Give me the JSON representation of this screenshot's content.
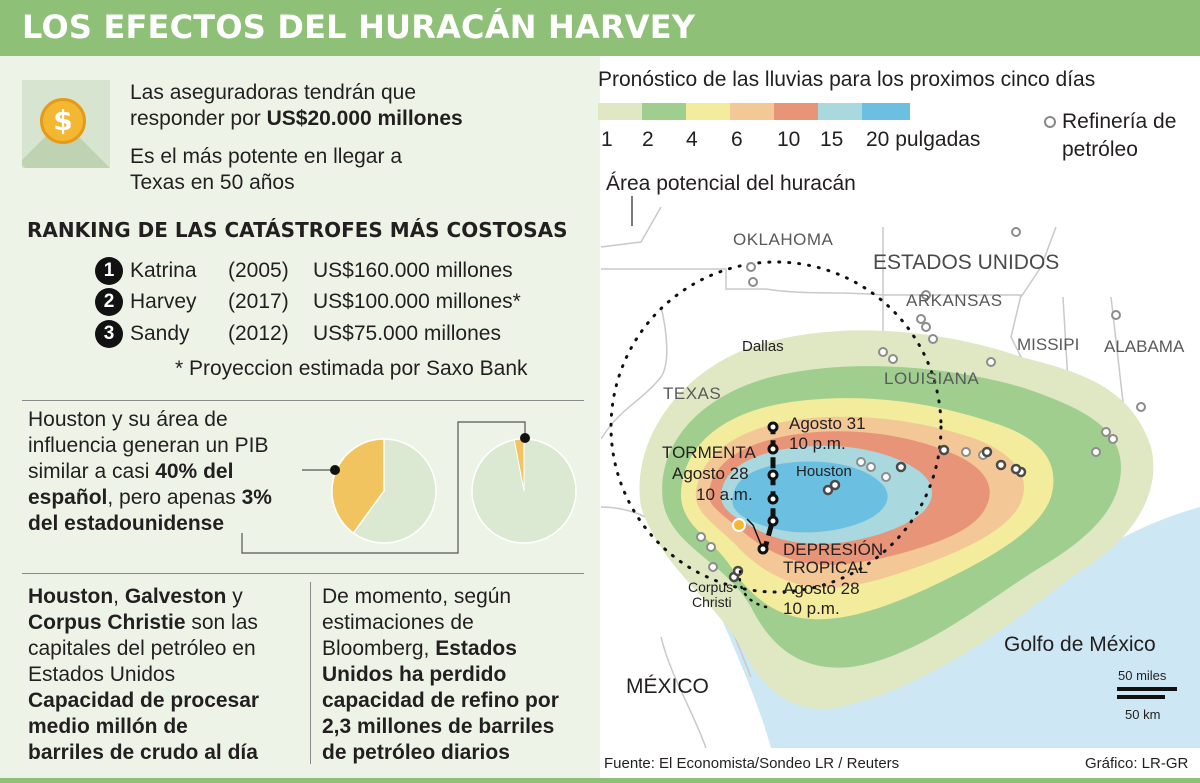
{
  "header": {
    "title": "LOS EFECTOS DEL HURACÁN HARVEY"
  },
  "intro": {
    "line1": "Las aseguradoras tendrán que",
    "line2_pre": "responder por ",
    "line2_bold": "US$20.000 millones",
    "line3": "Es el más potente en llegar a",
    "line4": "Texas en 50 años",
    "coin_icon": "dollar-coin-icon",
    "coin_symbol": "$"
  },
  "ranking": {
    "title": "RANKING DE LAS CATÁSTROFES MÁS COSTOSAS",
    "items": [
      {
        "num": "1",
        "name": "Katrina",
        "year": "(2005)",
        "cost": "US$160.000 millones"
      },
      {
        "num": "2",
        "name": "Harvey",
        "year": "(2017)",
        "cost": "US$100.000 millones*"
      },
      {
        "num": "3",
        "name": "Sandy",
        "year": "(2012)",
        "cost": "US$75.000 millones"
      }
    ],
    "footnote": "* Proyeccion estimada por Saxo Bank"
  },
  "gdp": {
    "l1": "Houston y su área de",
    "l2": "influencia generan un PIB",
    "l3_pre": "similar a casi ",
    "l3_bold": "40% del",
    "l4_bold": "español",
    "l4_mid": ", pero apenas ",
    "l4_bold2": "3%",
    "l5_bold": "del estadounidense",
    "pie_spain_share": 0.4,
    "pie_us_share": 0.03,
    "colors": {
      "share": "#f2c45f",
      "rest": "#dbe8d2",
      "outline": "#ffffff"
    }
  },
  "oil": {
    "a1_b1": "Houston",
    "a1_m": ", ",
    "a1_b2": "Galveston",
    "a1_e": " y",
    "a2_b": "Corpus Christie",
    "a2_e": " son las",
    "a3": "capitales del petróleo en",
    "a4": "Estados Unidos",
    "a5": "Capacidad de procesar",
    "a6": "medio millón de",
    "a7": "barriles de crudo al día",
    "b1": "De momento, según",
    "b2": "estimaciones de",
    "b3_pre": "Bloomberg, ",
    "b3_bold": "Estados",
    "b4": "Unidos ha perdido",
    "b5": "capacidad de refino por",
    "b6": "2,3 millones de barriles",
    "b7": "de petróleo diarios"
  },
  "legend": {
    "title": "Pronóstico de las lluvias para los proximos  cinco días",
    "swatch_colors": [
      "#dfe8c3",
      "#9fce8f",
      "#f2ec9c",
      "#f3c896",
      "#e89478",
      "#a9d8df",
      "#6bc0e2"
    ],
    "labels": [
      "1",
      "2",
      "4",
      "6",
      "10",
      "15",
      "20 pulgadas"
    ],
    "refinery_label_1": "Refinería de",
    "refinery_label_2": "petróleo",
    "area_label": "Área potencial del huracán"
  },
  "map": {
    "oklahoma": "OKLAHOMA",
    "usa": "ESTADOS UNIDOS",
    "arkansas": "ARKANSAS",
    "missisippi": "MISSIPI",
    "alabama": "ALABAMA",
    "dallas": "Dallas",
    "texas": "TEXAS",
    "louisiana": "LOUISIANA",
    "houston": "Houston",
    "aug31_1": "Agosto 31",
    "aug31_2": "10 p.m.",
    "storm_1": "TORMENTA",
    "storm_2": "Agosto 28",
    "storm_3": "10 a.m.",
    "dep_1": "DEPRESIÓN",
    "dep_2": "TROPICAL",
    "dep_3": "Agosto 28",
    "dep_4": "10 p.m.",
    "corpus_1": "Corpus",
    "corpus_2": "Christi",
    "gulf": "Golfo de México",
    "mexico": "MÉXICO",
    "scale_miles": "50 miles",
    "scale_km": "50 km",
    "colors": {
      "land": "#ffffff",
      "water": "#cde8f4",
      "storm_dot": "#f4b731"
    }
  },
  "footer": {
    "source": "Fuente: El Economista/Sondeo LR / Reuters",
    "credit": "Gráfico: LR-GR"
  }
}
